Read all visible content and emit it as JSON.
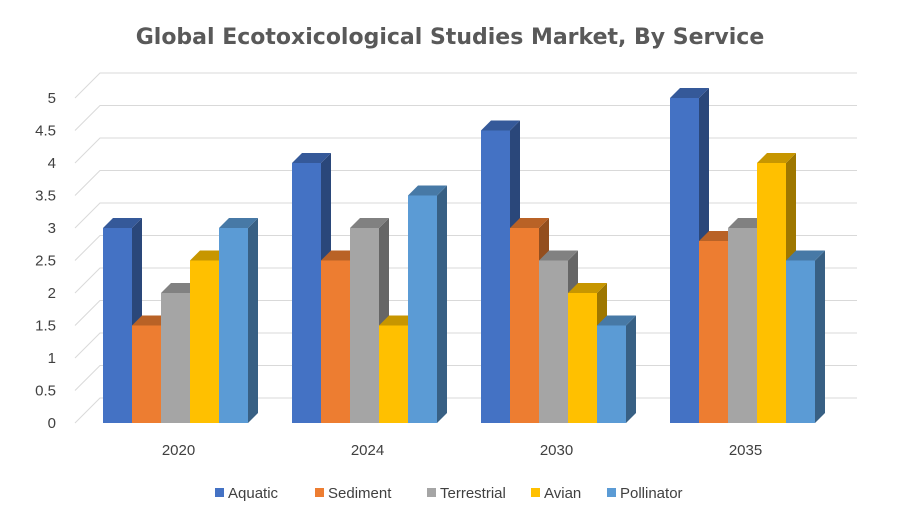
{
  "chart_data": {
    "type": "bar",
    "title": "Global Ecotoxicological Studies Market, By Service",
    "xlabel": "",
    "ylabel": "",
    "categories": [
      "2020",
      "2024",
      "2030",
      "2035"
    ],
    "series": [
      {
        "name": "Aquatic",
        "values": [
          3,
          4,
          4.5,
          5
        ],
        "color": "#4472C4"
      },
      {
        "name": "Sediment",
        "values": [
          1.5,
          2.5,
          3,
          2.8
        ],
        "color": "#ED7D31"
      },
      {
        "name": "Terrestrial",
        "values": [
          2,
          3,
          2.5,
          3
        ],
        "color": "#A5A5A5"
      },
      {
        "name": "Avian",
        "values": [
          2.5,
          1.5,
          2,
          4
        ],
        "color": "#FFC000"
      },
      {
        "name": "Pollinator",
        "values": [
          3,
          3.5,
          1.5,
          2.5
        ],
        "color": "#5B9BD5"
      }
    ],
    "ylim": [
      0,
      5
    ],
    "yticks": [
      "0",
      "0.5",
      "1",
      "1.5",
      "2",
      "2.5",
      "3",
      "3.5",
      "4",
      "4.5",
      "5"
    ],
    "grid": true,
    "legend": "bottom"
  }
}
